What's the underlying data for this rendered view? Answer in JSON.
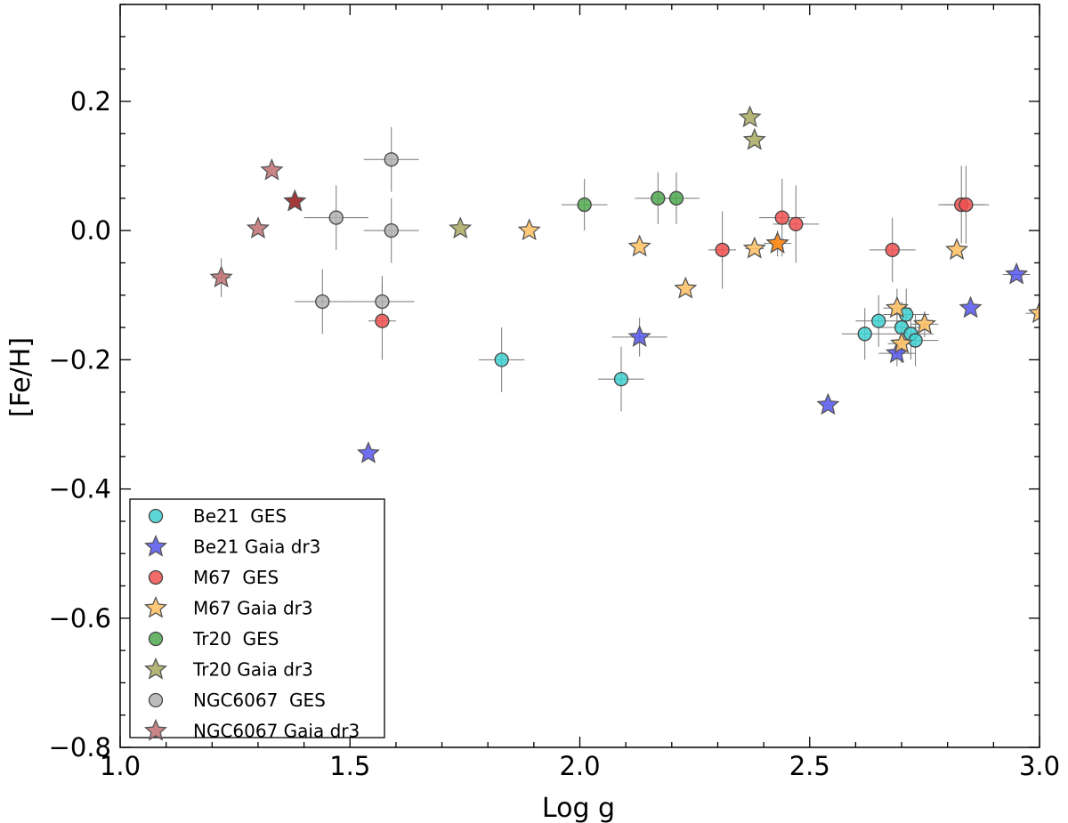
{
  "chart_data": {
    "type": "scatter",
    "title": "",
    "xlabel": "Log g",
    "ylabel": "[Fe/H]",
    "xlim": [
      1.0,
      3.0
    ],
    "ylim": [
      -0.8,
      0.35
    ],
    "xticks": [
      1.0,
      1.5,
      2.0,
      2.5,
      3.0
    ],
    "xtick_labels": [
      "1.0",
      "1.5",
      "2.0",
      "2.5",
      "3.0"
    ],
    "yticks": [
      -0.8,
      -0.6,
      -0.4,
      -0.2,
      0.0,
      0.2
    ],
    "ytick_labels": [
      "−0.8",
      "−0.6",
      "−0.4",
      "−0.2",
      "0.0",
      "0.2"
    ],
    "grid": false,
    "legend_position": "bottom-left",
    "series": [
      {
        "name": "Be21  GES",
        "marker": "circle",
        "color": "#40d0d0",
        "points": [
          {
            "x": 1.83,
            "y": -0.2,
            "xerr": 0.05,
            "yerr": 0.05
          },
          {
            "x": 2.09,
            "y": -0.23,
            "xerr": 0.05,
            "yerr": 0.05
          },
          {
            "x": 2.62,
            "y": -0.16,
            "xerr": 0.05,
            "yerr": 0.04
          },
          {
            "x": 2.65,
            "y": -0.14,
            "xerr": 0.05,
            "yerr": 0.04
          },
          {
            "x": 2.7,
            "y": -0.15,
            "xerr": 0.05,
            "yerr": 0.04
          },
          {
            "x": 2.71,
            "y": -0.13,
            "xerr": 0.05,
            "yerr": 0.04
          },
          {
            "x": 2.72,
            "y": -0.16,
            "xerr": 0.05,
            "yerr": 0.04
          },
          {
            "x": 2.73,
            "y": -0.17,
            "xerr": 0.05,
            "yerr": 0.04
          }
        ]
      },
      {
        "name": "Be21 Gaia dr3",
        "marker": "star",
        "color": "#5555ee",
        "points": [
          {
            "x": 1.54,
            "y": -0.345,
            "xerr": 0,
            "yerr": 0
          },
          {
            "x": 2.13,
            "y": -0.165,
            "xerr": 0.06,
            "yerr": 0.03
          },
          {
            "x": 2.54,
            "y": -0.27,
            "xerr": 0,
            "yerr": 0
          },
          {
            "x": 2.69,
            "y": -0.19,
            "xerr": 0.04,
            "yerr": 0.02
          },
          {
            "x": 2.85,
            "y": -0.12,
            "xerr": 0,
            "yerr": 0
          },
          {
            "x": 2.95,
            "y": -0.068,
            "xerr": 0.03,
            "yerr": 0
          }
        ]
      },
      {
        "name": "M67  GES",
        "marker": "circle",
        "color": "#f05050",
        "points": [
          {
            "x": 1.57,
            "y": -0.14,
            "xerr": 0.03,
            "yerr": 0.06
          },
          {
            "x": 2.31,
            "y": -0.03,
            "xerr": 0.03,
            "yerr": 0.06
          },
          {
            "x": 2.44,
            "y": 0.02,
            "xerr": 0.05,
            "yerr": 0.06
          },
          {
            "x": 2.47,
            "y": 0.01,
            "xerr": 0.05,
            "yerr": 0.06
          },
          {
            "x": 2.68,
            "y": -0.03,
            "xerr": 0.05,
            "yerr": 0.05
          },
          {
            "x": 2.83,
            "y": 0.04,
            "xerr": 0.05,
            "yerr": 0.06
          },
          {
            "x": 2.84,
            "y": 0.04,
            "xerr": 0.05,
            "yerr": 0.06
          }
        ]
      },
      {
        "name": "M67 Gaia dr3",
        "marker": "star",
        "color": "#ffc060",
        "points": [
          {
            "x": 1.89,
            "y": 0.0,
            "xerr": 0,
            "yerr": 0
          },
          {
            "x": 2.13,
            "y": -0.025,
            "xerr": 0,
            "yerr": 0
          },
          {
            "x": 2.23,
            "y": -0.09,
            "xerr": 0,
            "yerr": 0
          },
          {
            "x": 2.38,
            "y": -0.028,
            "xerr": 0.02,
            "yerr": 0
          },
          {
            "x": 2.43,
            "y": -0.02,
            "xerr": 0.03,
            "yerr": 0.02
          },
          {
            "x": 2.69,
            "y": -0.12,
            "xerr": 0.03,
            "yerr": 0.03
          },
          {
            "x": 2.7,
            "y": -0.175,
            "xerr": 0.03,
            "yerr": 0.03
          },
          {
            "x": 2.75,
            "y": -0.145,
            "xerr": 0.03,
            "yerr": 0.02
          },
          {
            "x": 2.82,
            "y": -0.03,
            "xerr": 0,
            "yerr": 0
          },
          {
            "x": 3.0,
            "y": -0.128,
            "xerr": 0.03,
            "yerr": 0
          }
        ]
      },
      {
        "name": "Tr20  GES",
        "marker": "circle",
        "color": "#50a850",
        "points": [
          {
            "x": 2.01,
            "y": 0.04,
            "xerr": 0.05,
            "yerr": 0.04
          },
          {
            "x": 2.17,
            "y": 0.05,
            "xerr": 0.05,
            "yerr": 0.04
          },
          {
            "x": 2.21,
            "y": 0.05,
            "xerr": 0.05,
            "yerr": 0.04
          }
        ]
      },
      {
        "name": "Tr20 Gaia dr3",
        "marker": "star",
        "color": "#a8a860",
        "points": [
          {
            "x": 1.74,
            "y": 0.003,
            "xerr": 0,
            "yerr": 0
          },
          {
            "x": 2.37,
            "y": 0.175,
            "xerr": 0,
            "yerr": 0
          },
          {
            "x": 2.38,
            "y": 0.14,
            "xerr": 0,
            "yerr": 0
          }
        ]
      },
      {
        "name": "NGC6067  GES",
        "marker": "circle",
        "color": "#b0b0b0",
        "points": [
          {
            "x": 1.44,
            "y": -0.11,
            "xerr": 0.06,
            "yerr": 0.05
          },
          {
            "x": 1.47,
            "y": 0.02,
            "xerr": 0.07,
            "yerr": 0.05
          },
          {
            "x": 1.57,
            "y": -0.11,
            "xerr": 0.07,
            "yerr": 0.04
          },
          {
            "x": 1.59,
            "y": 0.11,
            "xerr": 0.06,
            "yerr": 0.05
          },
          {
            "x": 1.59,
            "y": 0.0,
            "xerr": 0.06,
            "yerr": 0.05
          }
        ]
      },
      {
        "name": "NGC6067 Gaia dr3",
        "marker": "star",
        "color": "#c07070",
        "points": [
          {
            "x": 1.22,
            "y": -0.073,
            "xerr": 0.02,
            "yerr": 0.03
          },
          {
            "x": 1.3,
            "y": 0.003,
            "xerr": 0,
            "yerr": 0
          },
          {
            "x": 1.33,
            "y": 0.093,
            "xerr": 0,
            "yerr": 0
          },
          {
            "x": 1.38,
            "y": 0.045,
            "xerr": 0,
            "yerr": 0
          }
        ]
      }
    ],
    "overlap_points": [
      {
        "x": 1.38,
        "y": 0.045,
        "color": "#a03030"
      },
      {
        "x": 2.43,
        "y": -0.02,
        "color": "#ff8a1a"
      }
    ]
  }
}
